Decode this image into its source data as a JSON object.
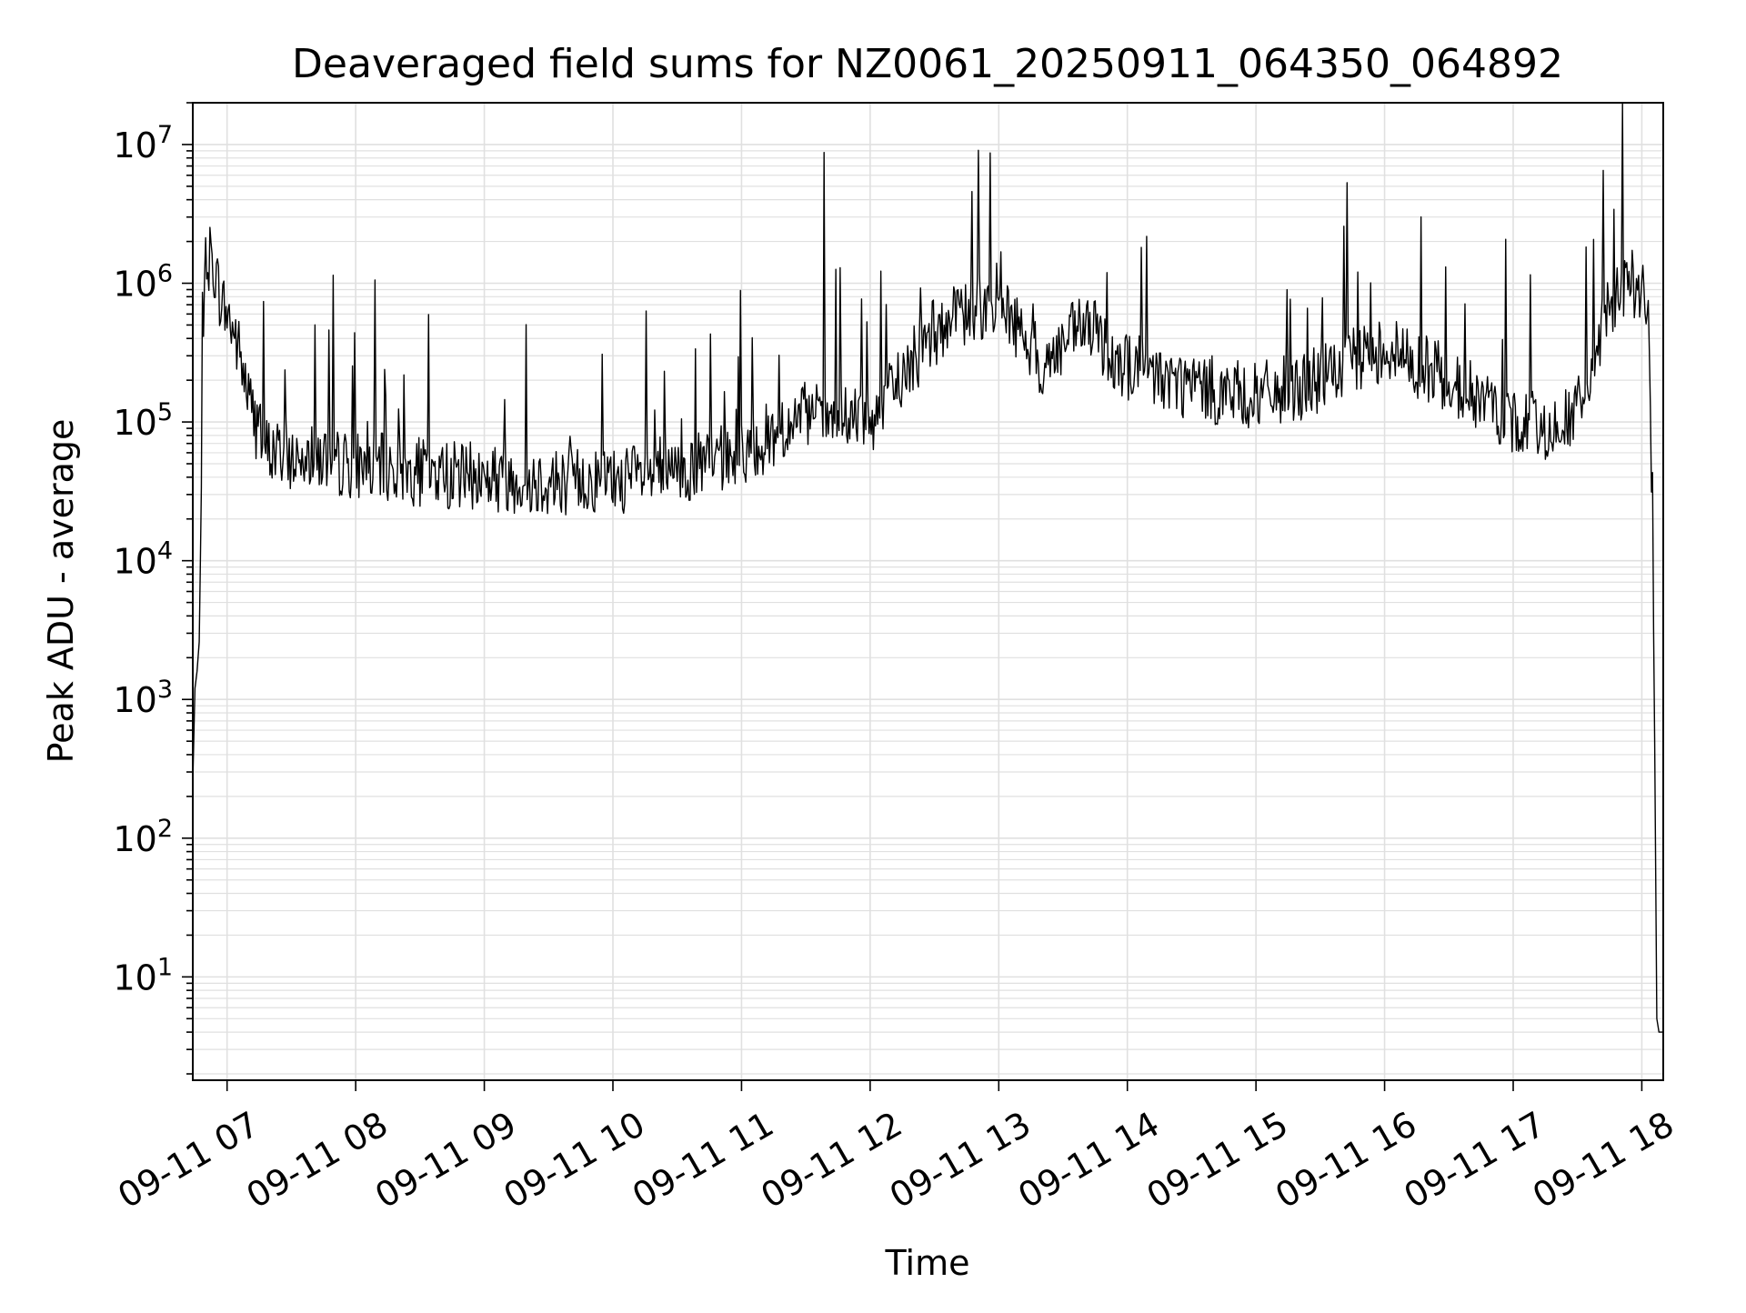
{
  "chart_data": {
    "type": "line",
    "title": "Deaveraged field sums for NZ0061_20250911_064350_064892",
    "xlabel": "Time",
    "ylabel": "Peak ADU - average",
    "x_scale": "time",
    "y_scale": "log",
    "xlim": [
      "2025-09-11 06:44",
      "2025-09-11 18:10"
    ],
    "ylim": [
      1.8,
      20000000
    ],
    "grid": true,
    "legend": "none",
    "x_ticks": [
      {
        "value": "2025-09-11 07:00",
        "label": "09-11 07"
      },
      {
        "value": "2025-09-11 08:00",
        "label": "09-11 08"
      },
      {
        "value": "2025-09-11 09:00",
        "label": "09-11 09"
      },
      {
        "value": "2025-09-11 10:00",
        "label": "09-11 10"
      },
      {
        "value": "2025-09-11 11:00",
        "label": "09-11 11"
      },
      {
        "value": "2025-09-11 12:00",
        "label": "09-11 12"
      },
      {
        "value": "2025-09-11 13:00",
        "label": "09-11 13"
      },
      {
        "value": "2025-09-11 14:00",
        "label": "09-11 14"
      },
      {
        "value": "2025-09-11 15:00",
        "label": "09-11 15"
      },
      {
        "value": "2025-09-11 16:00",
        "label": "09-11 16"
      },
      {
        "value": "2025-09-11 17:00",
        "label": "09-11 17"
      },
      {
        "value": "2025-09-11 18:00",
        "label": "09-11 18"
      }
    ],
    "y_ticks": [
      {
        "value": 10,
        "base": "10",
        "exp": "1"
      },
      {
        "value": 100,
        "base": "10",
        "exp": "2"
      },
      {
        "value": 1000,
        "base": "10",
        "exp": "3"
      },
      {
        "value": 10000,
        "base": "10",
        "exp": "4"
      },
      {
        "value": 100000,
        "base": "10",
        "exp": "5"
      },
      {
        "value": 1000000,
        "base": "10",
        "exp": "6"
      },
      {
        "value": 10000000,
        "base": "10",
        "exp": "7"
      }
    ],
    "colors": {
      "line": "#000000",
      "grid": "#e0e0e0",
      "axes": "#000000"
    },
    "series": [
      {
        "x": [
          "2025-09-11 06:44",
          "2025-09-11 06:45",
          "2025-09-11 06:46",
          "2025-09-11 06:47",
          "2025-09-11 06:48",
          "2025-09-11 06:49",
          "2025-09-11 06:50",
          "2025-09-11 06:52",
          "2025-09-11 06:54",
          "2025-09-11 06:56",
          "2025-09-11 06:58",
          "2025-09-11 07:00",
          "2025-09-11 07:02",
          "2025-09-11 07:04",
          "2025-09-11 07:06",
          "2025-09-11 07:10",
          "2025-09-11 07:15",
          "2025-09-11 07:20",
          "2025-09-11 07:25",
          "2025-09-11 07:30",
          "2025-09-11 07:40",
          "2025-09-11 07:50",
          "2025-09-11 08:00",
          "2025-09-11 08:20",
          "2025-09-11 08:40",
          "2025-09-11 09:00",
          "2025-09-11 09:30",
          "2025-09-11 10:00",
          "2025-09-11 10:30",
          "2025-09-11 11:00",
          "2025-09-11 11:30",
          "2025-09-11 12:00",
          "2025-09-11 12:30",
          "2025-09-11 13:00",
          "2025-09-11 13:20",
          "2025-09-11 13:40",
          "2025-09-11 14:00",
          "2025-09-11 14:30",
          "2025-09-11 15:00",
          "2025-09-11 15:30",
          "2025-09-11 16:00",
          "2025-09-11 16:30",
          "2025-09-11 17:00",
          "2025-09-11 17:20",
          "2025-09-11 17:30",
          "2025-09-11 17:35",
          "2025-09-11 17:45",
          "2025-09-11 17:55",
          "2025-09-11 18:00",
          "2025-09-11 18:03",
          "2025-09-11 18:05",
          "2025-09-11 18:06",
          "2025-09-11 18:07",
          "2025-09-11 18:08",
          "2025-09-11 18:10"
        ],
        "y": [
          250,
          1200,
          1600,
          2600,
          30000,
          400000,
          1200000,
          1550000,
          1300000,
          900000,
          700000,
          600000,
          500000,
          400000,
          300000,
          150000,
          80000,
          60000,
          60000,
          55000,
          60000,
          50000,
          50000,
          45000,
          42000,
          40000,
          38000,
          38000,
          42000,
          60000,
          110000,
          100000,
          450000,
          800000,
          250000,
          500000,
          250000,
          180000,
          150000,
          200000,
          350000,
          200000,
          100000,
          90000,
          120000,
          180000,
          700000,
          1000000,
          1000000,
          500000,
          20000,
          500,
          5,
          4,
          4
        ]
      }
    ]
  }
}
